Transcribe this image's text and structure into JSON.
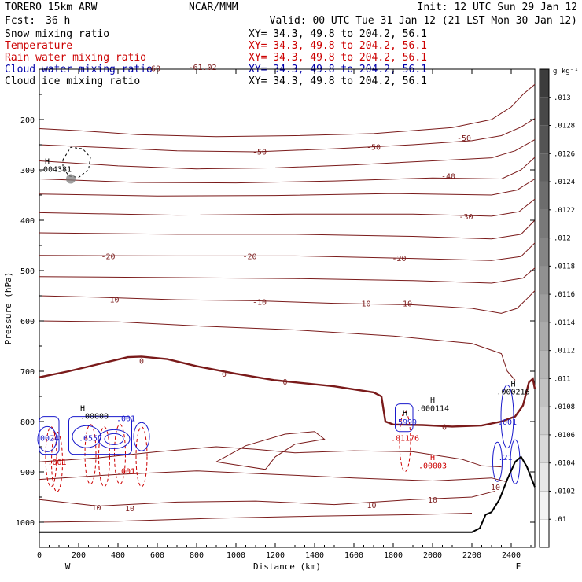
{
  "header": {
    "model": "TORERO  15km ARW",
    "center": "NCAR/MMM",
    "init": "Init: 12 UTC Sun 29 Jan 12",
    "fcst_label": "Fcst:",
    "fcst_value": "36 h",
    "valid": "Valid: 00 UTC Tue 31 Jan 12 (21 LST Mon 30 Jan 12)"
  },
  "fields": [
    {
      "name": "Snow mixing ratio",
      "xy": "XY=  34.3, 49.8 to 204.2, 56.1",
      "color": "#000000"
    },
    {
      "name": "Temperature",
      "xy": "XY=  34.3, 49.8 to 204.2, 56.1",
      "color": "#cc0000"
    },
    {
      "name": "Rain water mixing ratio",
      "xy": "XY=  34.3, 49.8 to 204.2, 56.1",
      "color": "#cc0000"
    },
    {
      "name": "Cloud water mixing ratio",
      "xy": "XY=  34.3, 49.8 to 204.2, 56.1",
      "color": "#0000aa"
    },
    {
      "name": "Cloud ice mixing ratio",
      "xy": "XY=  34.3, 49.8 to 204.2, 56.1",
      "color": "#000000"
    }
  ],
  "colors": {
    "temperature": "#7a1a1a",
    "zero_isotherm": "#7a1a1a",
    "rain": "#cc0000",
    "cloud_water": "#1a1acc",
    "terrain": "#000000"
  },
  "chart_data": {
    "type": "contour",
    "xlabel": "Distance (km)",
    "ylabel": "Pressure (hPa)",
    "xlim": [
      0,
      2520
    ],
    "ylim": [
      1050,
      100
    ],
    "xticks": [
      0,
      200,
      400,
      600,
      800,
      1000,
      1200,
      1400,
      1600,
      1800,
      2000,
      2200,
      2400
    ],
    "yticks": [
      200,
      300,
      400,
      500,
      600,
      700,
      800,
      900,
      1000
    ],
    "x_end_labels": {
      "left": "W",
      "right": "E"
    },
    "colorbar": {
      "units": "g kg⁻¹",
      "ticks": [
        ".013",
        ".0128",
        ".0126",
        ".0124",
        ".0122",
        ".012",
        ".0118",
        ".0116",
        ".0114",
        ".0112",
        ".011",
        ".0108",
        ".0106",
        ".0104",
        ".0102",
        ".01"
      ]
    },
    "temperature_contour_labels": [
      {
        "text": "-60",
        "x": 580,
        "p": 98
      },
      {
        "text": "-61.02",
        "x": 830,
        "p": 95
      },
      {
        "text": "-50",
        "x": 1120,
        "p": 263
      },
      {
        "text": "-50",
        "x": 1700,
        "p": 254
      },
      {
        "text": "-50",
        "x": 2160,
        "p": 236
      },
      {
        "text": "-40",
        "x": 2080,
        "p": 312
      },
      {
        "text": "-30",
        "x": 2170,
        "p": 392
      },
      {
        "text": "-20",
        "x": 350,
        "p": 471
      },
      {
        "text": "-20",
        "x": 1070,
        "p": 471
      },
      {
        "text": "-20",
        "x": 1830,
        "p": 475
      },
      {
        "text": "-10",
        "x": 370,
        "p": 557
      },
      {
        "text": "-10",
        "x": 1120,
        "p": 562
      },
      {
        "text": "-10",
        "x": 1650,
        "p": 565
      },
      {
        "text": "-10",
        "x": 1860,
        "p": 565
      },
      {
        "text": "0",
        "x": 520,
        "p": 679
      },
      {
        "text": "0",
        "x": 940,
        "p": 705
      },
      {
        "text": "0",
        "x": 1250,
        "p": 720
      },
      {
        "text": "0",
        "x": 2060,
        "p": 810
      },
      {
        "text": "10",
        "x": 290,
        "p": 970
      },
      {
        "text": "10",
        "x": 460,
        "p": 972
      },
      {
        "text": "10",
        "x": 1690,
        "p": 966
      },
      {
        "text": "10",
        "x": 2000,
        "p": 955
      },
      {
        "text": "10",
        "x": 2320,
        "p": 930
      }
    ],
    "rain_labels": [
      {
        "text": ".001",
        "x": 90,
        "p": 880
      },
      {
        "text": ".001",
        "x": 440,
        "p": 898
      },
      {
        "text": ".01176",
        "x": 1860,
        "p": 832
      },
      {
        "text": "H",
        "x": 2000,
        "p": 870
      },
      {
        "text": ".00003",
        "x": 2000,
        "p": 887
      }
    ],
    "cloud_water_labels": [
      {
        "text": ".0024",
        "x": 40,
        "p": 832
      },
      {
        "text": ".6557",
        "x": 260,
        "p": 832
      },
      {
        "text": ".001",
        "x": 440,
        "p": 793
      },
      {
        "text": ".5999",
        "x": 1860,
        "p": 800
      },
      {
        "text": ".001",
        "x": 2380,
        "p": 800
      },
      {
        "text": ".21",
        "x": 2370,
        "p": 870
      }
    ],
    "maxima_labels": [
      {
        "text": "H",
        "x": 40,
        "p": 282
      },
      {
        "text": ".004381",
        "x": 80,
        "p": 298
      },
      {
        "text": "H",
        "x": 220,
        "p": 773
      },
      {
        "text": ".00000",
        "x": 280,
        "p": 788
      },
      {
        "text": "H",
        "x": 2000,
        "p": 756
      },
      {
        "text": ".000114",
        "x": 2000,
        "p": 773
      },
      {
        "text": "H",
        "x": 2410,
        "p": 724
      },
      {
        "text": ".000216",
        "x": 2410,
        "p": 740
      },
      {
        "text": "H",
        "x": 1860,
        "p": 782
      }
    ],
    "terrain": {
      "x": [
        0,
        2200,
        2240,
        2270,
        2300,
        2340,
        2380,
        2420,
        2450,
        2480,
        2500,
        2520
      ],
      "p": [
        1020,
        1020,
        1012,
        985,
        980,
        955,
        915,
        880,
        870,
        890,
        910,
        930
      ]
    }
  }
}
